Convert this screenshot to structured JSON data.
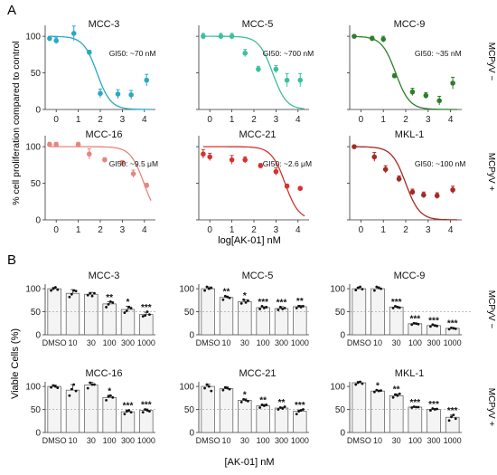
{
  "panel_labels": {
    "a": "A",
    "b": "B"
  },
  "section_a": {
    "ylabel": "% cell proliferation compared to control",
    "xlabel": "log[AK-01] nM",
    "row_labels": [
      "MCPyV −",
      "MCPyV +"
    ],
    "x_ticks": [
      "0",
      "1",
      "2",
      "3",
      "4"
    ],
    "y_ticks": [
      "0",
      "50",
      "100"
    ]
  },
  "section_b": {
    "ylabel": "Viable Cells (%)",
    "xlabel": "[AK-01] nM",
    "row_labels": [
      "MCPyV −",
      "MCPyV +"
    ],
    "categories": [
      "DMSO",
      "10",
      "30",
      "100",
      "300",
      "1000"
    ],
    "y_ticks": [
      "0",
      "50",
      "100"
    ]
  },
  "colors": {
    "MCC-3": "#2aa8c4",
    "MCC-5": "#3dbf9e",
    "MCC-9": "#2f7d2a",
    "MCC-16": "#e8857c",
    "MCC-21": "#d6322e",
    "MKL-1": "#a52a22",
    "bar_fill": "#f4f4f4",
    "bar_stroke": "#555555",
    "point": "#111111"
  },
  "chart_data": [
    {
      "type": "scatter",
      "panel": "A",
      "title": "MCC-3",
      "gi50_label": "GI50: ~70 nM",
      "xlim": [
        -0.5,
        4.5
      ],
      "ylim": [
        0,
        115
      ],
      "gi50_log": 1.85,
      "points": [
        {
          "x": -0.3,
          "y": 97,
          "err": 3
        },
        {
          "x": 0,
          "y": 94,
          "err": 4
        },
        {
          "x": 0.8,
          "y": 104,
          "err": 10
        },
        {
          "x": 1.5,
          "y": 78,
          "err": 3
        },
        {
          "x": 2,
          "y": 22,
          "err": 6
        },
        {
          "x": 2.8,
          "y": 21,
          "err": 6
        },
        {
          "x": 3.4,
          "y": 20,
          "err": 6
        },
        {
          "x": 4.1,
          "y": 40,
          "err": 8
        }
      ]
    },
    {
      "type": "scatter",
      "panel": "A",
      "title": "MCC-5",
      "gi50_label": "GI50: ~700 nM",
      "xlim": [
        -0.5,
        4.5
      ],
      "ylim": [
        0,
        115
      ],
      "gi50_log": 2.85,
      "points": [
        {
          "x": -0.3,
          "y": 100,
          "err": 4
        },
        {
          "x": 0.5,
          "y": 100,
          "err": 4
        },
        {
          "x": 1,
          "y": 100,
          "err": 4
        },
        {
          "x": 1.6,
          "y": 77,
          "err": 5
        },
        {
          "x": 2.2,
          "y": 55,
          "err": 4
        },
        {
          "x": 3,
          "y": 55,
          "err": 5
        },
        {
          "x": 3.5,
          "y": 40,
          "err": 9
        },
        {
          "x": 4.1,
          "y": 40,
          "err": 9
        }
      ]
    },
    {
      "type": "scatter",
      "panel": "A",
      "title": "MCC-9",
      "gi50_label": "GI50: ~35 nM",
      "xlim": [
        -0.5,
        4.5
      ],
      "ylim": [
        0,
        115
      ],
      "gi50_log": 1.55,
      "points": [
        {
          "x": -0.3,
          "y": 100,
          "err": 2
        },
        {
          "x": 0.5,
          "y": 97,
          "err": 3
        },
        {
          "x": 1,
          "y": 96,
          "err": 4
        },
        {
          "x": 1.5,
          "y": 46,
          "err": 3
        },
        {
          "x": 2.3,
          "y": 24,
          "err": 5
        },
        {
          "x": 2.9,
          "y": 19,
          "err": 4
        },
        {
          "x": 3.5,
          "y": 12,
          "err": 6
        },
        {
          "x": 4.1,
          "y": 36,
          "err": 8
        }
      ]
    },
    {
      "type": "scatter",
      "panel": "A",
      "title": "MCC-16",
      "gi50_label": "GI50: ~9.5 μM",
      "xlim": [
        -0.5,
        4.5
      ],
      "ylim": [
        0,
        115
      ],
      "gi50_log": 3.98,
      "points": [
        {
          "x": -0.3,
          "y": 103,
          "err": 3
        },
        {
          "x": 0,
          "y": 103,
          "err": 3
        },
        {
          "x": 1,
          "y": 103,
          "err": 3
        },
        {
          "x": 1.5,
          "y": 90,
          "err": 7
        },
        {
          "x": 2.2,
          "y": 82,
          "err": 3
        },
        {
          "x": 3,
          "y": 78,
          "err": 3
        },
        {
          "x": 3.5,
          "y": 63,
          "err": 5
        },
        {
          "x": 4.1,
          "y": 47,
          "err": 3
        }
      ]
    },
    {
      "type": "scatter",
      "panel": "A",
      "title": "MCC-21",
      "gi50_label": "GI50: ~2.6 μM",
      "xlim": [
        -0.5,
        4.5
      ],
      "ylim": [
        0,
        115
      ],
      "gi50_log": 3.41,
      "points": [
        {
          "x": -0.3,
          "y": 90,
          "err": 6
        },
        {
          "x": 0,
          "y": 86,
          "err": 5
        },
        {
          "x": 1,
          "y": 82,
          "err": 6
        },
        {
          "x": 1.6,
          "y": 82,
          "err": 4
        },
        {
          "x": 2.3,
          "y": 74,
          "err": 3
        },
        {
          "x": 3,
          "y": 66,
          "err": 5
        },
        {
          "x": 3.5,
          "y": 46,
          "err": 3
        },
        {
          "x": 4.1,
          "y": 43,
          "err": 2
        }
      ]
    },
    {
      "type": "scatter",
      "panel": "A",
      "title": "MKL-1",
      "gi50_label": "GI50: ~100 nM",
      "xlim": [
        -0.5,
        4.5
      ],
      "ylim": [
        0,
        115
      ],
      "gi50_log": 2.0,
      "points": [
        {
          "x": -0.3,
          "y": 100,
          "err": 2
        },
        {
          "x": 0.6,
          "y": 86,
          "err": 6
        },
        {
          "x": 1.1,
          "y": 69,
          "err": 5
        },
        {
          "x": 1.7,
          "y": 56,
          "err": 4
        },
        {
          "x": 2.3,
          "y": 38,
          "err": 4
        },
        {
          "x": 2.8,
          "y": 34,
          "err": 4
        },
        {
          "x": 3.4,
          "y": 33,
          "err": 4
        },
        {
          "x": 4.1,
          "y": 41,
          "err": 5
        }
      ]
    },
    {
      "type": "bar",
      "panel": "B",
      "title": "MCC-3",
      "categories": [
        "DMSO",
        "10",
        "30",
        "100",
        "300",
        "1000"
      ],
      "ylim": [
        0,
        110
      ],
      "values": [
        100,
        90,
        88,
        67,
        55,
        44
      ],
      "errors": [
        3,
        8,
        4,
        5,
        7,
        5
      ],
      "significance": [
        "",
        "",
        "",
        "**",
        "*",
        "***"
      ],
      "points": [
        [
          96,
          100,
          103,
          98
        ],
        [
          82,
          88,
          96,
          95
        ],
        [
          86,
          90,
          84,
          90
        ],
        [
          60,
          66,
          72,
          70
        ],
        [
          48,
          52,
          60,
          58
        ],
        [
          40,
          42,
          50,
          44
        ]
      ]
    },
    {
      "type": "bar",
      "panel": "B",
      "title": "MCC-5",
      "categories": [
        "DMSO",
        "10",
        "30",
        "100",
        "300",
        "1000"
      ],
      "ylim": [
        0,
        110
      ],
      "values": [
        100,
        81,
        72,
        59,
        57,
        61
      ],
      "errors": [
        4,
        3,
        4,
        2,
        4,
        3
      ],
      "significance": [
        "",
        "**",
        "*",
        "***",
        "***",
        "**"
      ],
      "points": [
        [
          96,
          104,
          100,
          102
        ],
        [
          76,
          84,
          82,
          80
        ],
        [
          68,
          76,
          70,
          74
        ],
        [
          56,
          62,
          58,
          60
        ],
        [
          54,
          60,
          56,
          58
        ],
        [
          58,
          62,
          60,
          62
        ]
      ]
    },
    {
      "type": "bar",
      "panel": "B",
      "title": "MCC-9",
      "categories": [
        "DMSO",
        "10",
        "30",
        "100",
        "300",
        "1000"
      ],
      "ylim": [
        0,
        110
      ],
      "values": [
        100,
        100,
        60,
        24,
        20,
        14
      ],
      "errors": [
        3,
        4,
        2,
        2,
        2,
        2
      ],
      "significance": [
        "",
        "",
        "***",
        "***",
        "***",
        "***"
      ],
      "points": [
        [
          97,
          102,
          104,
          99
        ],
        [
          96,
          104,
          102,
          100
        ],
        [
          58,
          62,
          60,
          59
        ],
        [
          22,
          25,
          24,
          23
        ],
        [
          18,
          22,
          20,
          19
        ],
        [
          12,
          15,
          14,
          13
        ]
      ],
      "reference_line": 50
    },
    {
      "type": "bar",
      "panel": "B",
      "title": "MCC-16",
      "categories": [
        "DMSO",
        "10",
        "30",
        "100",
        "300",
        "1000"
      ],
      "ylim": [
        0,
        110
      ],
      "values": [
        100,
        92,
        103,
        76,
        45,
        48
      ],
      "errors": [
        3,
        12,
        6,
        5,
        4,
        3
      ],
      "significance": [
        "",
        "",
        "",
        "*",
        "***",
        "***"
      ],
      "points": [
        [
          98,
          102,
          100,
          97
        ],
        [
          80,
          94,
          104,
          90
        ],
        [
          96,
          108,
          104,
          104
        ],
        [
          70,
          78,
          80,
          76
        ],
        [
          40,
          46,
          48,
          44
        ],
        [
          44,
          50,
          48,
          46
        ]
      ]
    },
    {
      "type": "bar",
      "panel": "B",
      "title": "MCC-21",
      "categories": [
        "DMSO",
        "10",
        "30",
        "100",
        "300",
        "1000"
      ],
      "ylim": [
        0,
        110
      ],
      "values": [
        100,
        95,
        70,
        58,
        53,
        46
      ],
      "errors": [
        5,
        4,
        3,
        3,
        2,
        3
      ],
      "significance": [
        "",
        "",
        "*",
        "**",
        "**",
        "***"
      ],
      "points": [
        [
          96,
          104,
          100,
          90
        ],
        [
          92,
          98,
          96,
          94
        ],
        [
          66,
          72,
          70,
          68
        ],
        [
          54,
          60,
          58,
          60
        ],
        [
          50,
          54,
          52,
          56
        ],
        [
          40,
          46,
          48,
          50
        ]
      ]
    },
    {
      "type": "bar",
      "panel": "B",
      "title": "MKL-1",
      "categories": [
        "DMSO",
        "10",
        "30",
        "100",
        "300",
        "1000"
      ],
      "ylim": [
        0,
        110
      ],
      "values": [
        108,
        90,
        80,
        55,
        50,
        33
      ],
      "errors": [
        3,
        2,
        4,
        1,
        2,
        5
      ],
      "significance": [
        "",
        "*",
        "**",
        "***",
        "***",
        "***"
      ],
      "points": [
        [
          104,
          108,
          110,
          106
        ],
        [
          88,
          92,
          90,
          91
        ],
        [
          76,
          82,
          80,
          84
        ],
        [
          54,
          56,
          55,
          55
        ],
        [
          48,
          52,
          50,
          51
        ],
        [
          26,
          34,
          38,
          30
        ]
      ]
    }
  ]
}
